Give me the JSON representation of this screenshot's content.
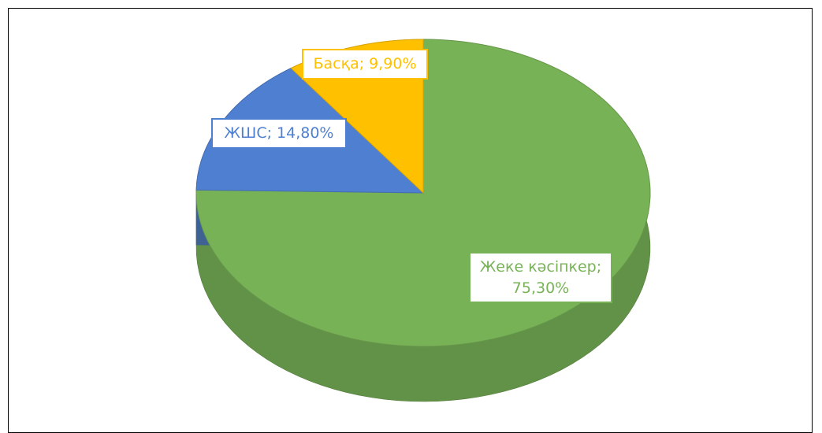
{
  "chart_data": {
    "type": "pie",
    "categories": [
      "Жеке кәсіпкер",
      "ЖШС",
      "Басқа"
    ],
    "values": [
      75.3,
      14.8,
      9.9
    ],
    "value_labels": [
      "Жеке кәсіпкер; 75,30%",
      "ЖШС; 14,80%",
      "Басқа; 9,90%"
    ],
    "colors": [
      "#78b257",
      "#4f7fd0",
      "#ffc000"
    ]
  }
}
